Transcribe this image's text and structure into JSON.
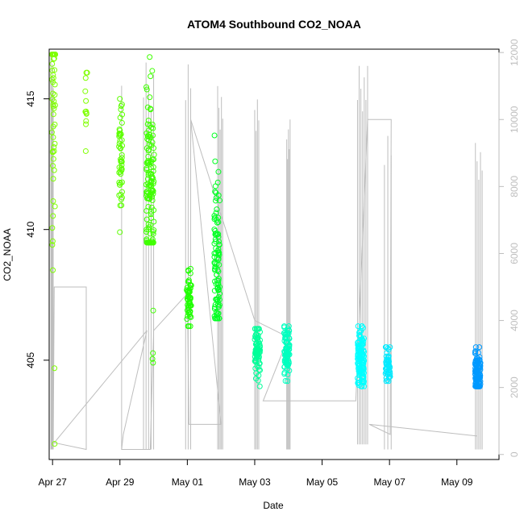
{
  "chart_data": {
    "type": "scatter",
    "title": "ATOM4 Southbound CO2_NOAA",
    "xlabel": "Date",
    "ylabel": "CO2_NOAA",
    "xlim": [
      -0.1,
      13.25
    ],
    "ylim": [
      401.2,
      416.9
    ],
    "x_ticks": [
      {
        "label": "Apr 27",
        "value": 0
      },
      {
        "label": "Apr 29",
        "value": 2
      },
      {
        "label": "May 01",
        "value": 4
      },
      {
        "label": "May 03",
        "value": 6
      },
      {
        "label": "May 05",
        "value": 8
      },
      {
        "label": "May 07",
        "value": 10
      },
      {
        "label": "May 09",
        "value": 12
      }
    ],
    "y_ticks": [
      405,
      410,
      415
    ],
    "y_ticks_labels": [
      "405",
      "410",
      "415"
    ],
    "secondary_axis": {
      "series_name": "altitude",
      "color": "#bebebe",
      "ylim": [
        -150,
        12100
      ],
      "ticks": [
        0,
        2000,
        4000,
        6000,
        8000,
        10000,
        12000
      ],
      "tick_labels": [
        "0",
        "2000",
        "4000",
        "6000",
        "8000",
        "10000",
        "12000"
      ]
    },
    "point_clusters": [
      {
        "x": 0.03,
        "xspread": 0.05,
        "ymin": 401.8,
        "ymax": 416.7,
        "ycenter": 414.5,
        "n": 60,
        "color": "#7fff00"
      },
      {
        "x": 1.0,
        "xspread": 0.03,
        "ymin": 413.0,
        "ymax": 416.0,
        "ycenter": 414.6,
        "n": 12,
        "color": "#7fff00"
      },
      {
        "x": 2.02,
        "xspread": 0.05,
        "ymin": 409.9,
        "ymax": 415.0,
        "ycenter": 412.8,
        "n": 50,
        "color": "#5cff00"
      },
      {
        "x": 2.9,
        "xspread": 0.12,
        "ymin": 409.5,
        "ymax": 416.6,
        "ycenter": 411.7,
        "n": 130,
        "color": "#3fff00"
      },
      {
        "x": 2.98,
        "xspread": 0.02,
        "ymin": 404.9,
        "ymax": 406.9,
        "ycenter": 405.9,
        "n": 4,
        "color": "#3fff00"
      },
      {
        "x": 4.05,
        "xspread": 0.07,
        "ymin": 406.3,
        "ymax": 408.5,
        "ycenter": 407.3,
        "n": 55,
        "color": "#1fff00"
      },
      {
        "x": 4.88,
        "xspread": 0.08,
        "ymin": 406.6,
        "ymax": 413.6,
        "ycenter": 408.5,
        "n": 110,
        "color": "#00ff22"
      },
      {
        "x": 6.08,
        "xspread": 0.08,
        "ymin": 404.0,
        "ymax": 406.2,
        "ycenter": 405.3,
        "n": 80,
        "color": "#00ff99"
      },
      {
        "x": 6.95,
        "xspread": 0.08,
        "ymin": 404.2,
        "ymax": 406.3,
        "ycenter": 405.3,
        "n": 90,
        "color": "#00ffbf"
      },
      {
        "x": 9.15,
        "xspread": 0.1,
        "ymin": 404.0,
        "ymax": 406.3,
        "ycenter": 405.0,
        "n": 140,
        "color": "#00ffff"
      },
      {
        "x": 9.95,
        "xspread": 0.07,
        "ymin": 404.2,
        "ymax": 405.5,
        "ycenter": 404.9,
        "n": 50,
        "color": "#00eaff"
      },
      {
        "x": 12.62,
        "xspread": 0.08,
        "ymin": 404.0,
        "ymax": 405.5,
        "ycenter": 404.5,
        "n": 110,
        "color": "#0099ff"
      }
    ],
    "altitude_segments": [
      {
        "x0": -0.05,
        "x1": 0.02,
        "ymin": 150,
        "ymax": 12000,
        "count": 5
      },
      {
        "x0": 1.0,
        "x1": 1.0,
        "ymin": 150,
        "ymax": 4400,
        "count": 1
      },
      {
        "x0": 2.05,
        "x1": 2.06,
        "ymin": 150,
        "ymax": 11700,
        "count": 1
      },
      {
        "x0": 2.7,
        "x1": 3.0,
        "ymin": 150,
        "ymax": 11700,
        "count": 5
      },
      {
        "x0": 3.95,
        "x1": 4.1,
        "ymin": 150,
        "ymax": 12000,
        "count": 3
      },
      {
        "x0": 4.9,
        "x1": 5.05,
        "ymin": 150,
        "ymax": 11000,
        "count": 5
      },
      {
        "x0": 6.0,
        "x1": 6.12,
        "ymin": 150,
        "ymax": 10600,
        "count": 4
      },
      {
        "x0": 6.95,
        "x1": 7.05,
        "ymin": 150,
        "ymax": 10000,
        "count": 5
      },
      {
        "x0": 9.05,
        "x1": 9.35,
        "ymin": 300,
        "ymax": 11600,
        "count": 7
      },
      {
        "x0": 9.85,
        "x1": 10.05,
        "ymin": 150,
        "ymax": 9800,
        "count": 3
      },
      {
        "x0": 12.55,
        "x1": 12.75,
        "ymin": 150,
        "ymax": 9300,
        "count": 5
      }
    ],
    "altitude_path": [
      [
        0.02,
        150
      ],
      [
        0.05,
        5000
      ],
      [
        1.0,
        5000
      ],
      [
        1.0,
        150
      ],
      [
        0.05,
        350
      ],
      [
        2.8,
        3700
      ],
      [
        2.1,
        600
      ],
      [
        2.05,
        150
      ],
      [
        2.9,
        150
      ],
      [
        3.0,
        3700
      ],
      [
        4.0,
        4800
      ],
      [
        4.05,
        900
      ],
      [
        5.0,
        900
      ],
      [
        4.1,
        10000
      ],
      [
        6.0,
        4000
      ],
      [
        7.0,
        3500
      ],
      [
        6.25,
        1600
      ],
      [
        9.0,
        1600
      ],
      [
        9.35,
        10000
      ],
      [
        10.05,
        10000
      ],
      [
        10.02,
        600
      ],
      [
        9.4,
        900
      ],
      [
        12.6,
        550
      ]
    ]
  }
}
